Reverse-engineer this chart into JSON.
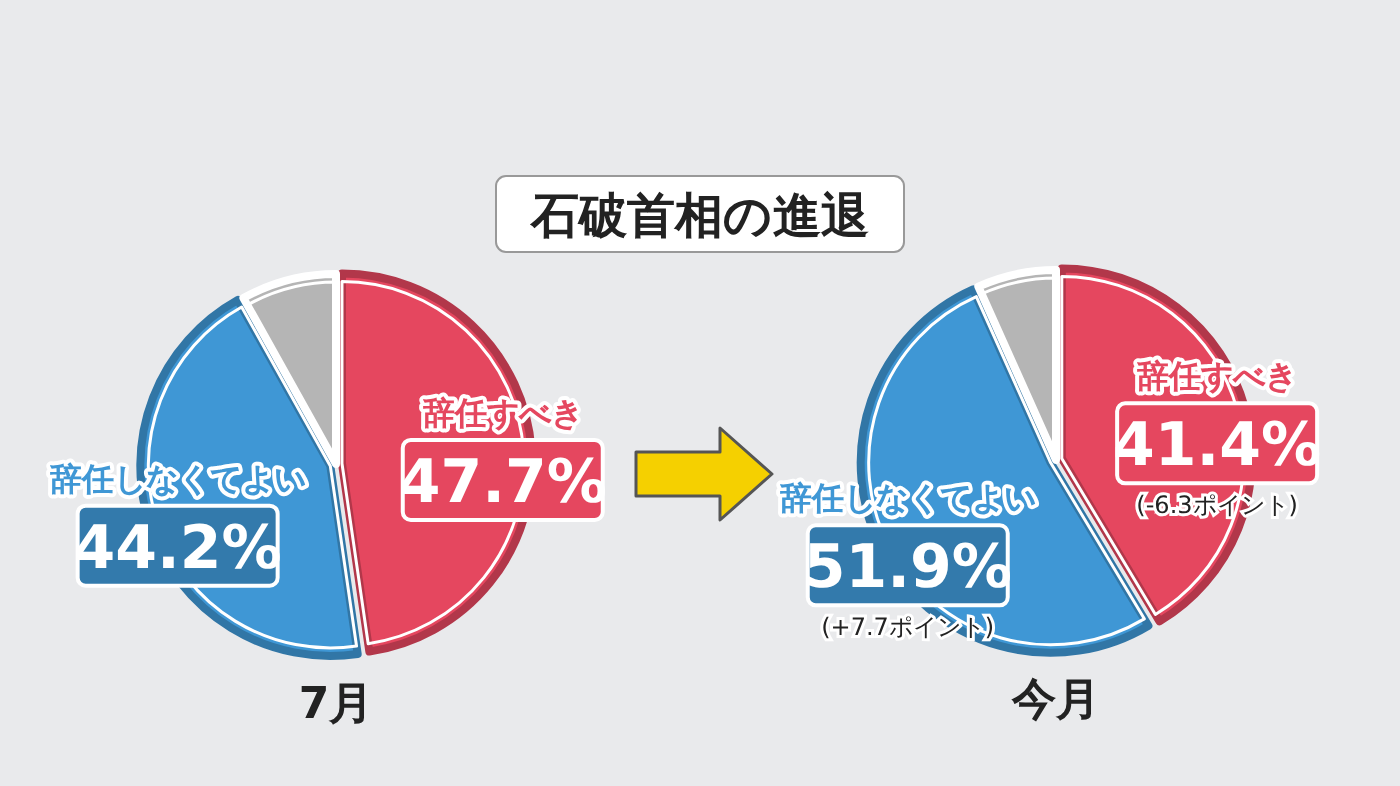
{
  "chart_data": [
    {
      "type": "pie",
      "title": "石破首相の進退",
      "xlabel": "7月",
      "categories": [
        "辞任すべき",
        "辞任しなくてよい",
        null
      ],
      "values": [
        47.7,
        44.2,
        8.1
      ],
      "colors": [
        "#e5475f",
        "#3f97d5",
        "#b5b5b5"
      ],
      "value_labels": [
        "47.7%",
        "44.2%",
        null
      ]
    },
    {
      "type": "pie",
      "xlabel": "今月",
      "categories": [
        "辞任すべき",
        "辞任しなくてよい",
        null
      ],
      "values": [
        41.4,
        51.9,
        6.7
      ],
      "colors": [
        "#e5475f",
        "#3f97d5",
        "#b5b5b5"
      ],
      "value_labels": [
        "41.4%",
        "51.9%",
        null
      ],
      "annotations": [
        "(-6.3ポイント)",
        "(+7.7ポイント)"
      ]
    }
  ]
}
